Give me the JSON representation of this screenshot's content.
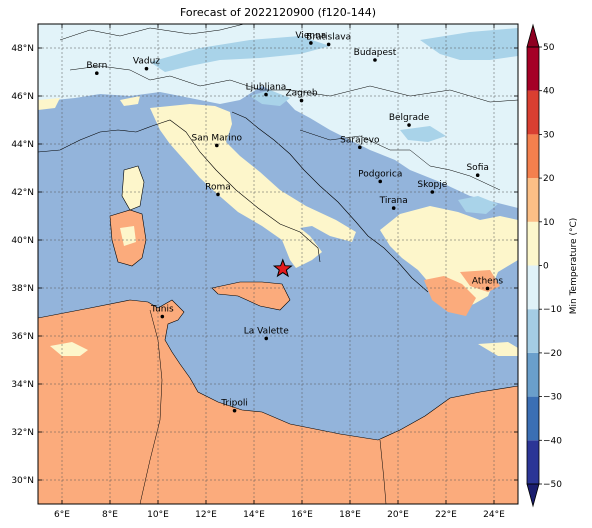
{
  "title": "Forecast of 2022120900 (f120-144)",
  "lon_ticks": [
    {
      "lon": 6,
      "label": "6°E"
    },
    {
      "lon": 8,
      "label": "8°E"
    },
    {
      "lon": 10,
      "label": "10°E"
    },
    {
      "lon": 12,
      "label": "12°E"
    },
    {
      "lon": 14,
      "label": "14°E"
    },
    {
      "lon": 16,
      "label": "16°E"
    },
    {
      "lon": 18,
      "label": "18°E"
    },
    {
      "lon": 20,
      "label": "20°E"
    },
    {
      "lon": 22,
      "label": "22°E"
    },
    {
      "lon": 24,
      "label": "24°E"
    }
  ],
  "lat_ticks": [
    {
      "lat": 30,
      "label": "30°N"
    },
    {
      "lat": 32,
      "label": "32°N"
    },
    {
      "lat": 34,
      "label": "34°N"
    },
    {
      "lat": 36,
      "label": "36°N"
    },
    {
      "lat": 38,
      "label": "38°N"
    },
    {
      "lat": 40,
      "label": "40°N"
    },
    {
      "lat": 42,
      "label": "42°N"
    },
    {
      "lat": 44,
      "label": "44°N"
    },
    {
      "lat": 46,
      "label": "46°N"
    },
    {
      "lat": 48,
      "label": "48°N"
    }
  ],
  "extent": {
    "lon_min": 5,
    "lon_max": 25,
    "lat_min": 29,
    "lat_max": 49
  },
  "cities": [
    {
      "name": "Bern",
      "lon": 7.45,
      "lat": 46.95
    },
    {
      "name": "Vaduz",
      "lon": 9.52,
      "lat": 47.14
    },
    {
      "name": "Vienna",
      "lon": 16.37,
      "lat": 48.21
    },
    {
      "name": "Bratislava",
      "lon": 17.11,
      "lat": 48.15
    },
    {
      "name": "Budapest",
      "lon": 19.04,
      "lat": 47.5
    },
    {
      "name": "Ljubljana",
      "lon": 14.5,
      "lat": 46.06
    },
    {
      "name": "Zagreb",
      "lon": 15.98,
      "lat": 45.81
    },
    {
      "name": "Belgrade",
      "lon": 20.46,
      "lat": 44.79
    },
    {
      "name": "San Marino",
      "lon": 12.45,
      "lat": 43.94
    },
    {
      "name": "Sarajevo",
      "lon": 18.41,
      "lat": 43.86
    },
    {
      "name": "Sofia",
      "lon": 23.32,
      "lat": 42.7
    },
    {
      "name": "Podgorica",
      "lon": 19.26,
      "lat": 42.44
    },
    {
      "name": "Skopje",
      "lon": 21.43,
      "lat": 42.0
    },
    {
      "name": "Roma",
      "lon": 12.5,
      "lat": 41.9
    },
    {
      "name": "Tirana",
      "lon": 19.82,
      "lat": 41.33
    },
    {
      "name": "Athens",
      "lon": 23.73,
      "lat": 37.98
    },
    {
      "name": "Tunis",
      "lon": 10.18,
      "lat": 36.81
    },
    {
      "name": "La Valette",
      "lon": 14.51,
      "lat": 35.9
    },
    {
      "name": "Tripoli",
      "lon": 13.19,
      "lat": 32.89
    }
  ],
  "marker": {
    "lon": 15.2,
    "lat": 38.8,
    "icon": "star-icon",
    "color": "#e41a1c"
  },
  "colorbar": {
    "label": "Min Temperature (°C)",
    "levels": [
      -50,
      -40,
      -30,
      -20,
      -10,
      0,
      10,
      20,
      30,
      40,
      50
    ],
    "tick_labels": [
      "−50",
      "−40",
      "−30",
      "−20",
      "−10",
      "0",
      "10",
      "20",
      "30",
      "40",
      "50"
    ],
    "colors": [
      "#2b3596",
      "#3b6fb4",
      "#6a9fcb",
      "#a4cde4",
      "#e0f2f8",
      "#fcf7cc",
      "#fcbf86",
      "#f4804e",
      "#d93f31",
      "#a50026"
    ],
    "extend_low": "#1a1d6e",
    "extend_high": "#8e0021"
  },
  "field_colors": {
    "sea": "#93b4db",
    "warm_land": "#fbab7c",
    "mild_land": "#fdf6cb",
    "cool_land": "#e2f3f9",
    "cold_land": "#a9d3e9"
  }
}
